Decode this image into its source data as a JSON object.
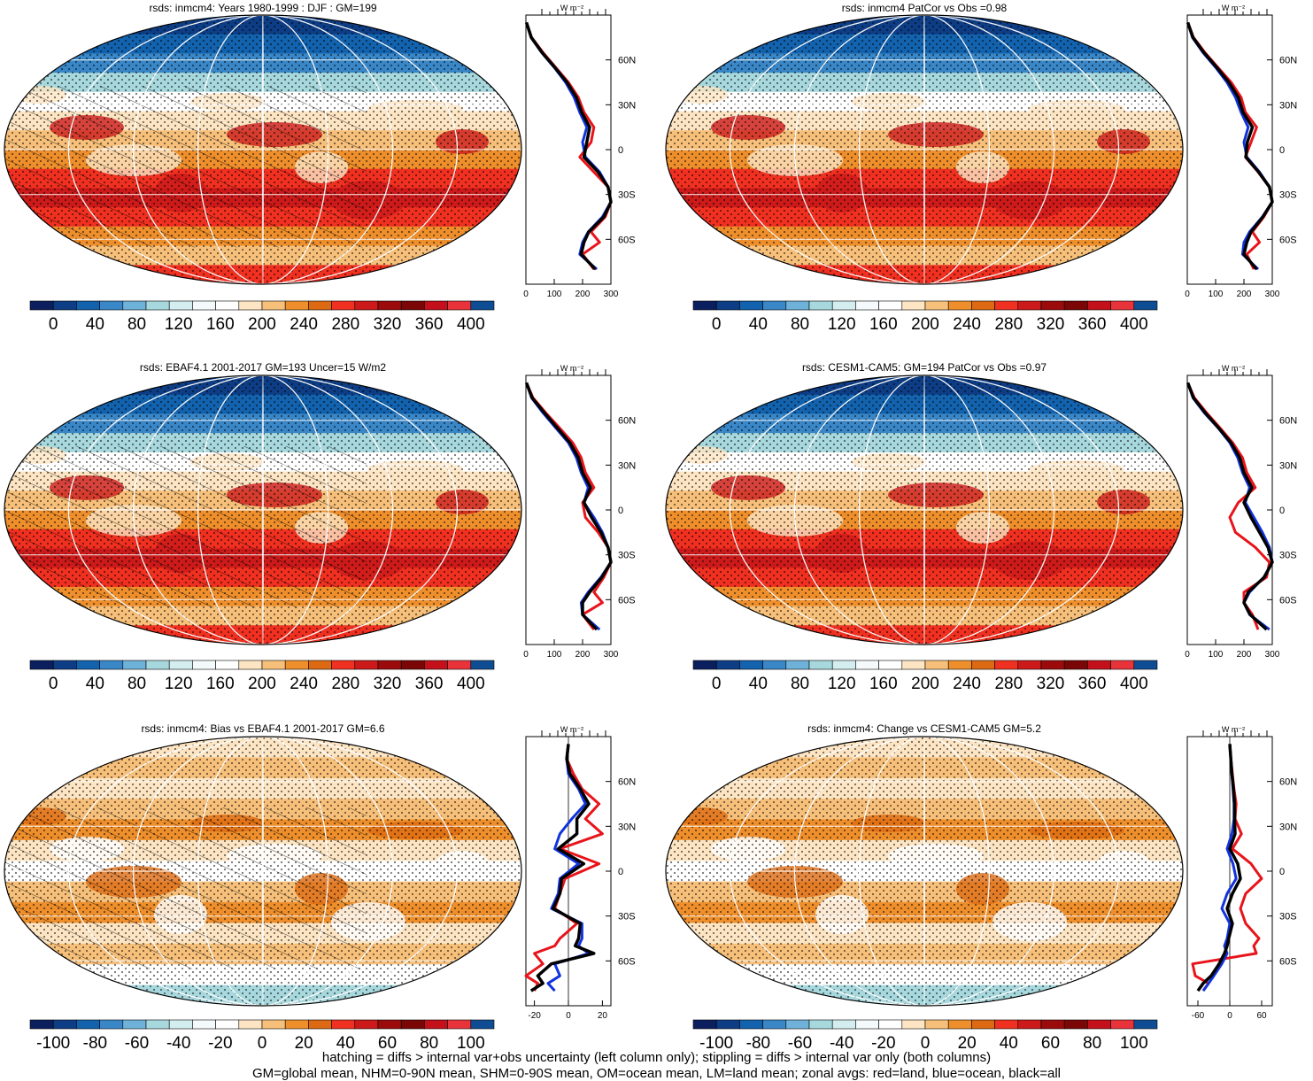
{
  "colors": {
    "abs": [
      "#0b1f5e",
      "#0d3d85",
      "#1262ae",
      "#3a87c8",
      "#6fb2d9",
      "#a7d8dd",
      "#d4eef0",
      "#f4fafb",
      "#ffffff",
      "#fde5c3",
      "#f7c07a",
      "#ee8f2c",
      "#dd6a12",
      "#f03020",
      "#cc1a1a",
      "#9c0b0b",
      "#7a0606",
      "#c4101b",
      "#e9333b",
      "#0e4d93"
    ],
    "diff": [
      "#0b1f5e",
      "#0d3d85",
      "#1262ae",
      "#3a87c8",
      "#6fb2d9",
      "#a7d8dd",
      "#d4eef0",
      "#f4fafb",
      "#ffffff",
      "#fde5c3",
      "#f7c07a",
      "#ee8f2c",
      "#dd6a12",
      "#f03020",
      "#cc1a1a",
      "#9c0b0b",
      "#7a0606",
      "#c4101b",
      "#e9333b",
      "#0e4d93"
    ],
    "land": "#e8141b",
    "ocean": "#1133dd",
    "all": "#000000"
  },
  "footer": {
    "line1": "hatching = diffs > internal var+obs uncertainty (left column only); stippling = diffs > internal var only (both columns)",
    "line2": "GM=global mean, NHM=0-90N mean, SHM=0-90S mean, OM=ocean mean, LM=land mean; zonal avgs: red=land, blue=ocean, black=all"
  },
  "lat_ticks": [
    "60N",
    "30N",
    "0",
    "30S",
    "60S"
  ],
  "unit_label": "W m⁻²",
  "chart_data": [
    {
      "title": "rsds: inmcm4: Years 1980-1999 : DJF : GM=199",
      "type": "map",
      "colorbar_labels": [
        "0",
        "40",
        "80",
        "120",
        "160",
        "200",
        "240",
        "280",
        "320",
        "360",
        "400"
      ],
      "zonal": {
        "xticks": [
          "0",
          "100",
          "200",
          "300"
        ],
        "xlim": [
          0,
          300
        ],
        "lat": [
          85,
          75,
          65,
          55,
          45,
          35,
          25,
          15,
          5,
          -5,
          -15,
          -25,
          -35,
          -45,
          -55,
          -62,
          -70,
          -80
        ],
        "land": [
          2,
          20,
          60,
          105,
          150,
          185,
          205,
          240,
          230,
          190,
          240,
          290,
          300,
          280,
          230,
          260,
          200,
          240
        ],
        "ocean": [
          2,
          18,
          55,
          100,
          140,
          170,
          190,
          215,
          200,
          210,
          260,
          290,
          300,
          270,
          220,
          200,
          190,
          250
        ],
        "all": [
          2,
          19,
          57,
          102,
          145,
          178,
          197,
          225,
          215,
          205,
          255,
          290,
          300,
          275,
          222,
          205,
          195,
          245
        ]
      }
    },
    {
      "title": "rsds: inmcm4 PatCor vs Obs =0.98",
      "type": "map",
      "colorbar_labels": [
        "0",
        "40",
        "80",
        "120",
        "160",
        "200",
        "240",
        "280",
        "320",
        "360",
        "400"
      ],
      "zonal": {
        "xticks": [
          "0",
          "100",
          "200",
          "300"
        ],
        "xlim": [
          0,
          300
        ],
        "lat": [
          85,
          75,
          65,
          55,
          45,
          35,
          25,
          15,
          5,
          -5,
          -15,
          -25,
          -35,
          -45,
          -55,
          -62,
          -70,
          -80
        ],
        "land": [
          2,
          22,
          62,
          108,
          155,
          190,
          205,
          245,
          225,
          205,
          250,
          290,
          300,
          270,
          230,
          255,
          210,
          235
        ],
        "ocean": [
          2,
          18,
          55,
          100,
          140,
          170,
          190,
          215,
          200,
          210,
          255,
          290,
          300,
          265,
          220,
          200,
          195,
          250
        ],
        "all": [
          2,
          20,
          58,
          104,
          147,
          180,
          197,
          230,
          212,
          207,
          252,
          290,
          300,
          267,
          225,
          210,
          200,
          245
        ]
      }
    },
    {
      "title": "rsds: EBAF4.1 2001-2017 GM=193 Uncer=15 W/m2",
      "type": "map",
      "colorbar_labels": [
        "0",
        "40",
        "80",
        "120",
        "160",
        "200",
        "240",
        "280",
        "320",
        "360",
        "400"
      ],
      "zonal": {
        "xticks": [
          "0",
          "100",
          "200",
          "300"
        ],
        "xlim": [
          0,
          300
        ],
        "lat": [
          85,
          75,
          65,
          55,
          45,
          35,
          25,
          15,
          5,
          -5,
          -15,
          -25,
          -35,
          -45,
          -55,
          -62,
          -70,
          -80
        ],
        "land": [
          2,
          25,
          70,
          118,
          165,
          195,
          210,
          240,
          200,
          210,
          255,
          290,
          300,
          275,
          240,
          270,
          200,
          240
        ],
        "ocean": [
          2,
          20,
          60,
          105,
          150,
          178,
          195,
          220,
          205,
          240,
          270,
          290,
          300,
          265,
          220,
          195,
          200,
          260
        ],
        "all": [
          2,
          22,
          65,
          110,
          155,
          185,
          200,
          228,
          205,
          232,
          265,
          290,
          300,
          268,
          225,
          200,
          200,
          250
        ]
      }
    },
    {
      "title": "rsds: CESM1-CAM5: GM=194 PatCor vs Obs =0.97",
      "type": "map",
      "colorbar_labels": [
        "0",
        "40",
        "80",
        "120",
        "160",
        "200",
        "240",
        "280",
        "320",
        "360",
        "400"
      ],
      "zonal": {
        "xticks": [
          "0",
          "100",
          "200",
          "300"
        ],
        "xlim": [
          0,
          300
        ],
        "lat": [
          85,
          75,
          65,
          55,
          45,
          35,
          25,
          15,
          5,
          -5,
          -15,
          -25,
          -35,
          -45,
          -55,
          -62,
          -70,
          -80
        ],
        "land": [
          2,
          25,
          68,
          115,
          160,
          195,
          210,
          240,
          180,
          150,
          170,
          240,
          290,
          280,
          200,
          200,
          230,
          250
        ],
        "ocean": [
          2,
          20,
          60,
          108,
          150,
          178,
          195,
          220,
          205,
          235,
          265,
          290,
          300,
          270,
          220,
          200,
          220,
          290
        ],
        "all": [
          2,
          22,
          63,
          110,
          154,
          185,
          200,
          228,
          200,
          225,
          255,
          285,
          300,
          272,
          215,
          200,
          222,
          280
        ]
      }
    },
    {
      "title": "rsds: inmcm4: Bias vs EBAF4.1 2001-2017 GM=6.6",
      "type": "map",
      "colorbar_labels": [
        "-100",
        "-80",
        "-60",
        "-40",
        "-20",
        "0",
        "20",
        "40",
        "60",
        "80",
        "100"
      ],
      "zonal": {
        "xticks": [
          "-20",
          "0",
          "20"
        ],
        "xlim": [
          -25,
          25
        ],
        "lat": [
          85,
          75,
          65,
          55,
          45,
          35,
          25,
          15,
          5,
          -5,
          -15,
          -25,
          -35,
          -45,
          -50,
          -55,
          -62,
          -70,
          -75,
          -80
        ],
        "land": [
          0,
          -1,
          3,
          8,
          18,
          10,
          20,
          -5,
          18,
          -2,
          -5,
          -8,
          5,
          -5,
          -8,
          -20,
          -15,
          -25,
          -18,
          -20
        ],
        "ocean": [
          0,
          -1,
          0,
          6,
          10,
          2,
          -5,
          -8,
          6,
          -5,
          -6,
          -10,
          8,
          8,
          6,
          12,
          -8,
          -5,
          -12,
          -8
        ],
        "all": [
          0,
          -1,
          1,
          7,
          12,
          5,
          5,
          -6,
          9,
          -4,
          -5,
          -9,
          7,
          6,
          4,
          15,
          -10,
          -18,
          -15,
          -22
        ]
      }
    },
    {
      "title": "rsds: inmcm4: Change vs CESM1-CAM5 GM=5.2",
      "type": "map",
      "colorbar_labels": [
        "-100",
        "-80",
        "-60",
        "-40",
        "-20",
        "0",
        "20",
        "40",
        "60",
        "80",
        "100"
      ],
      "zonal": {
        "xticks": [
          "-60",
          "0",
          "60"
        ],
        "xlim": [
          -80,
          80
        ],
        "lat": [
          85,
          75,
          65,
          55,
          45,
          35,
          25,
          15,
          5,
          -5,
          -15,
          -25,
          -35,
          -45,
          -50,
          -55,
          -62,
          -70,
          -75,
          -80
        ],
        "land": [
          0,
          2,
          5,
          8,
          12,
          10,
          22,
          5,
          40,
          60,
          30,
          20,
          30,
          55,
          45,
          50,
          -70,
          -65,
          -40,
          -50
        ],
        "ocean": [
          0,
          2,
          4,
          6,
          8,
          8,
          4,
          -5,
          6,
          12,
          -5,
          -15,
          0,
          -5,
          -10,
          -5,
          -15,
          -30,
          -40,
          -50
        ],
        "all": [
          0,
          2,
          4,
          7,
          9,
          9,
          10,
          0,
          15,
          20,
          5,
          -5,
          5,
          -2,
          -5,
          -10,
          -20,
          -35,
          -50,
          -60
        ]
      }
    }
  ]
}
